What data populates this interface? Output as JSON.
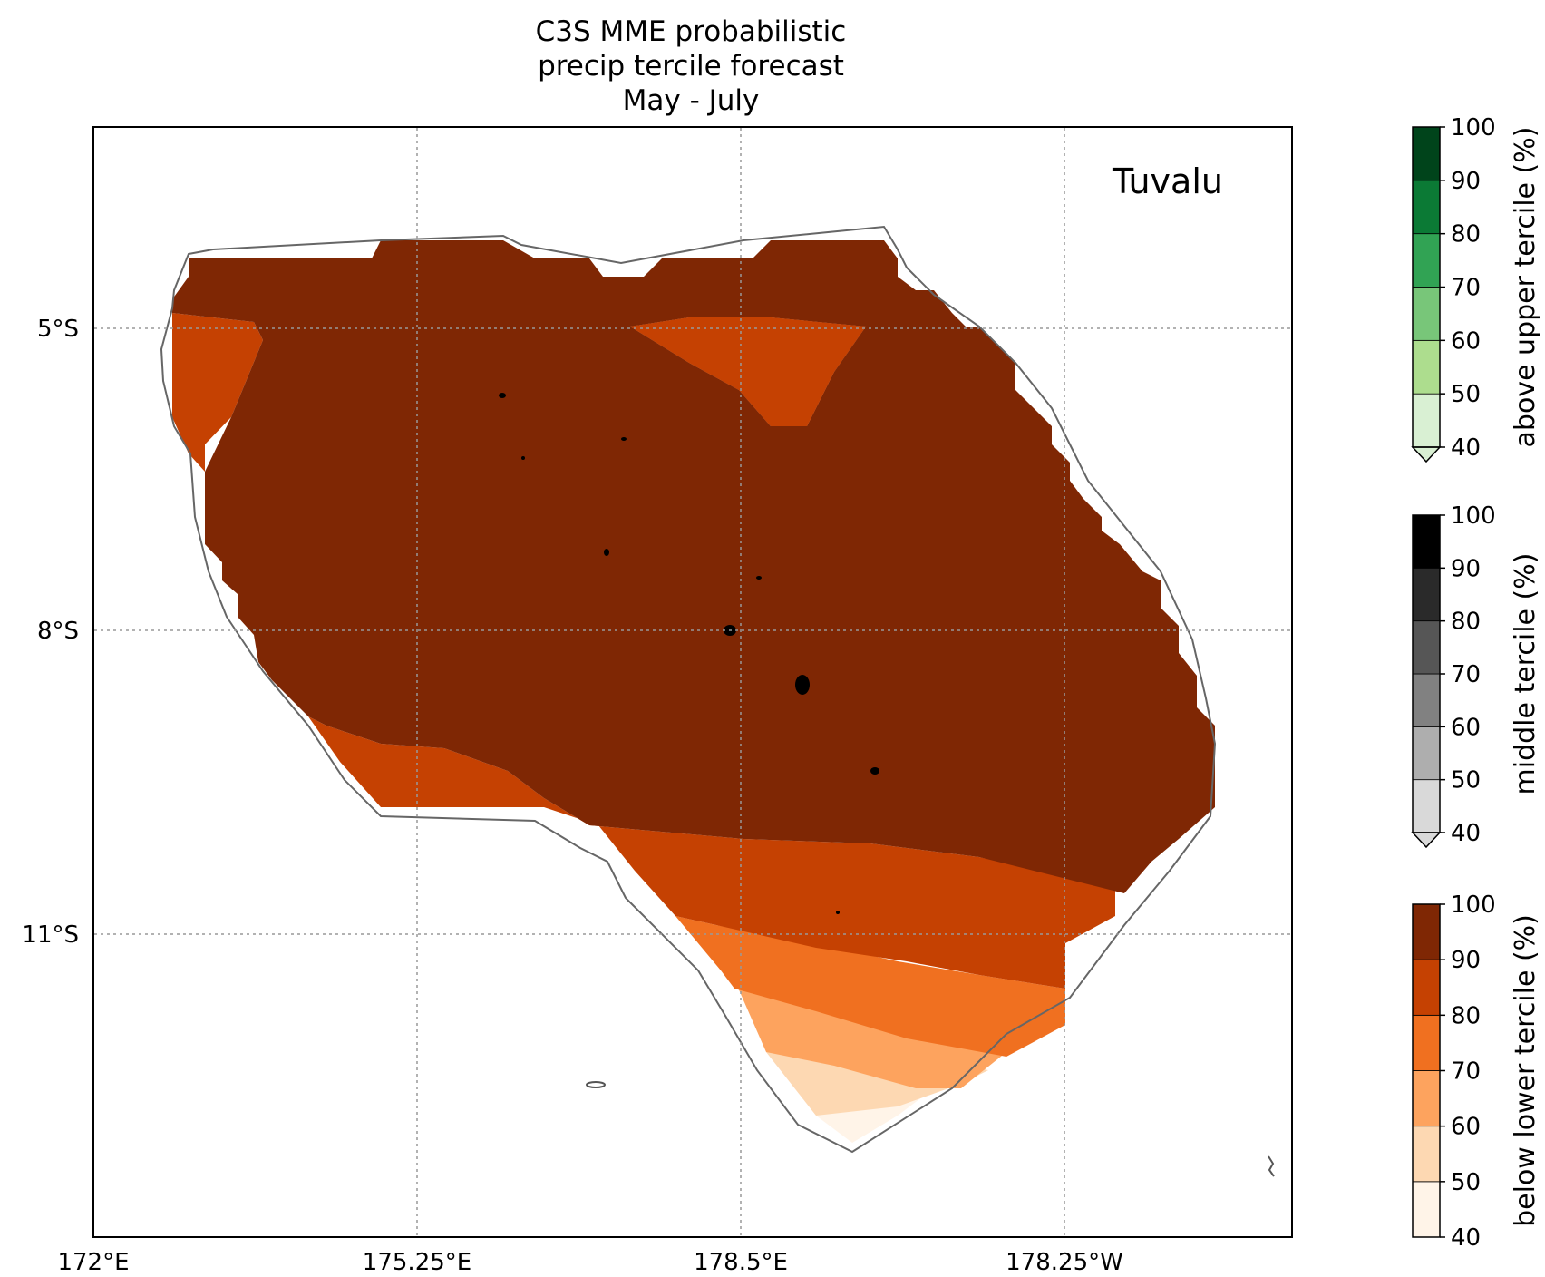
{
  "title": {
    "line1": "C3S MME probabilistic",
    "line2": "precip tercile forecast",
    "line3": "May - July"
  },
  "map": {
    "region_label": "Tuvalu",
    "x_ticks": [
      "172°E",
      "175.25°E",
      "178.5°E",
      "178.25°W"
    ],
    "y_ticks": [
      "5°S",
      "8°S",
      "11°S"
    ],
    "gridlines": "dotted grey",
    "fill_levels_present": [
      "below lower tercile 90-100%",
      "below lower tercile 80-90%",
      "below lower tercile 70-80%",
      "below lower tercile 60-70%",
      "below lower tercile 50-60%",
      "below lower tercile 40-50%"
    ]
  },
  "colorbars": [
    {
      "label": "above upper tercile (%)",
      "ticks": [
        "40",
        "50",
        "60",
        "70",
        "80",
        "90",
        "100"
      ],
      "colors": [
        "#d9f0d3",
        "#addd8e",
        "#78c679",
        "#31a354",
        "#0b7a35",
        "#00441b"
      ]
    },
    {
      "label": "middle tercile (%)",
      "ticks": [
        "40",
        "50",
        "60",
        "70",
        "80",
        "90",
        "100"
      ],
      "colors": [
        "#d9d9d9",
        "#aeaeae",
        "#818181",
        "#565656",
        "#2a2a2a",
        "#000000"
      ]
    },
    {
      "label": "below lower tercile (%)",
      "ticks": [
        "40",
        "50",
        "60",
        "70",
        "80",
        "90",
        "100"
      ],
      "colors": [
        "#fff4e8",
        "#fdd8b2",
        "#fda35e",
        "#f07020",
        "#c54102",
        "#7f2704"
      ]
    }
  ]
}
